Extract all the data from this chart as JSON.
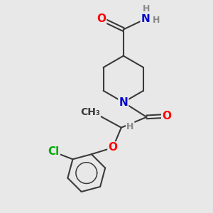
{
  "bg_color": "#e8e8e8",
  "bond_color": "#3a3a3a",
  "bond_width": 1.5,
  "atom_colors": {
    "O": "#ff0000",
    "N": "#0000cc",
    "Cl": "#00aa00",
    "H": "#888888",
    "C": "#3a3a3a"
  },
  "font_size_atom": 11,
  "font_size_small": 9
}
